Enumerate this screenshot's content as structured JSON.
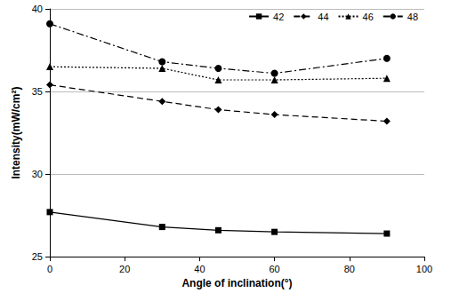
{
  "chart_data": {
    "type": "line",
    "x_label": "Angle of inclination(°)",
    "y_label": "Intensity(mW/cm²)",
    "x": [
      0,
      30,
      45,
      60,
      90
    ],
    "series": [
      {
        "name": "42",
        "color": "#000000",
        "marker": "square",
        "line_style": "solid",
        "values": [
          27.7,
          26.8,
          26.6,
          26.5,
          26.4
        ]
      },
      {
        "name": "44",
        "color": "#000000",
        "marker": "diamond",
        "line_style": "dashed",
        "values": [
          35.4,
          34.4,
          33.9,
          33.6,
          33.2
        ]
      },
      {
        "name": "46",
        "color": "#000000",
        "marker": "triangle",
        "line_style": "dotted",
        "values": [
          36.5,
          36.4,
          35.7,
          35.7,
          35.8
        ]
      },
      {
        "name": "48",
        "color": "#000000",
        "marker": "circle",
        "line_style": "dashdot",
        "values": [
          39.1,
          36.8,
          36.4,
          36.1,
          37.0
        ]
      }
    ],
    "xlim": [
      0,
      100
    ],
    "xticks": [
      0,
      20,
      40,
      60,
      80,
      100
    ],
    "ylim": [
      25,
      40
    ],
    "yticks": [
      25,
      30,
      35,
      40
    ],
    "grid": true,
    "legend": "upper right"
  }
}
